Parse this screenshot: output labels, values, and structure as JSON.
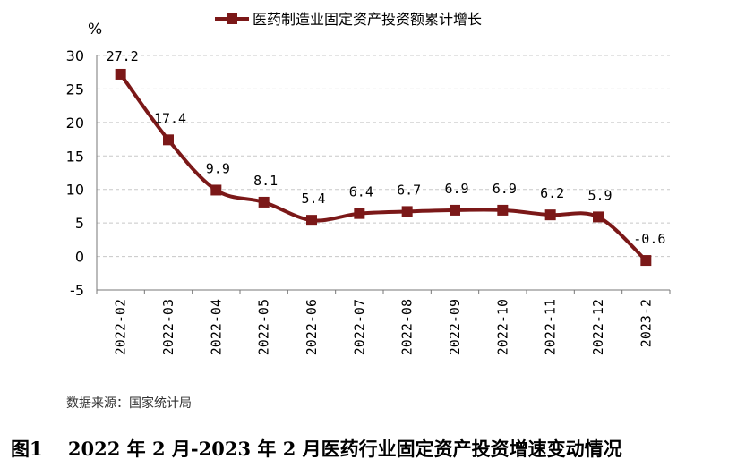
{
  "chart_data": {
    "type": "line",
    "title": "",
    "ylabel": "%",
    "xlabel": "",
    "categories": [
      "2022-02",
      "2022-03",
      "2022-04",
      "2022-05",
      "2022-06",
      "2022-07",
      "2022-08",
      "2022-09",
      "2022-10",
      "2022-11",
      "2022-12",
      "2023-2"
    ],
    "series": [
      {
        "name": "医药制造业固定资产投资额累计增长",
        "values": [
          27.2,
          17.4,
          9.9,
          8.1,
          5.4,
          6.4,
          6.7,
          6.9,
          6.9,
          6.2,
          5.9,
          -0.6
        ],
        "color": "#7b1818"
      }
    ],
    "data_labels": [
      "27.2",
      "17.4",
      "9.9",
      "8.1",
      "5.4",
      "6.4",
      "6.7",
      "6.9",
      "6.9",
      "6.2",
      "5.9",
      "-0.6"
    ],
    "ylim": [
      -5,
      30
    ],
    "yticks": [
      -5,
      0,
      5,
      10,
      15,
      20,
      25,
      30
    ],
    "grid": "horizontal dashed",
    "legend_placement": "top-center",
    "smooth": true,
    "marker": "square"
  },
  "source_note": "数据来源：国家统计局",
  "caption": "图1　 2022 年 2 月-2023 年 2 月医药行业固定资产投资增速变动情况"
}
